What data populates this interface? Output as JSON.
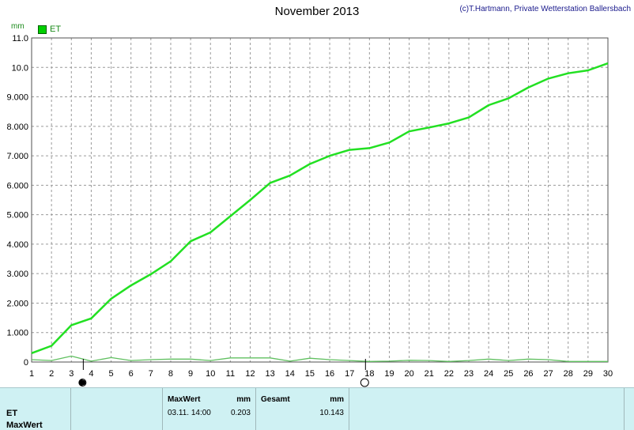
{
  "chart_data": {
    "type": "line",
    "title": "November 2013",
    "copyright": "(c)T.Hartmann, Private Wetterstation Ballersbach",
    "ylabel": "mm",
    "ylim": [
      0,
      11
    ],
    "xlim": [
      1,
      30
    ],
    "grid": true,
    "legend_position": "top-left",
    "y_ticks": [
      "0",
      "1.000",
      "2.000",
      "3.000",
      "4.000",
      "5.000",
      "6.000",
      "7.000",
      "8.000",
      "9.000",
      "10.0",
      "11.0"
    ],
    "x_ticks": [
      "1",
      "2",
      "3",
      "4",
      "5",
      "6",
      "7",
      "8",
      "9",
      "10",
      "11",
      "12",
      "13",
      "14",
      "15",
      "16",
      "17",
      "18",
      "19",
      "20",
      "21",
      "22",
      "23",
      "24",
      "25",
      "26",
      "27",
      "28",
      "29",
      "30"
    ],
    "series": [
      {
        "name": "ET",
        "color": "#22e022",
        "x": [
          1,
          2,
          3,
          4,
          5,
          6,
          7,
          8,
          9,
          10,
          11,
          12,
          13,
          14,
          15,
          16,
          17,
          18,
          19,
          20,
          21,
          22,
          23,
          24,
          25,
          26,
          27,
          28,
          29,
          30
        ],
        "values": [
          0.3,
          0.55,
          1.25,
          1.48,
          2.15,
          2.6,
          2.98,
          3.42,
          4.1,
          4.4,
          4.95,
          5.5,
          6.08,
          6.33,
          6.72,
          7.0,
          7.2,
          7.26,
          7.45,
          7.83,
          7.96,
          8.1,
          8.3,
          8.72,
          8.95,
          9.32,
          9.62,
          9.8,
          9.9,
          10.14
        ]
      },
      {
        "color": "#60c060",
        "x": [
          1,
          2,
          3,
          4,
          5,
          6,
          7,
          8,
          9,
          10,
          11,
          12,
          13,
          14,
          15,
          16,
          17,
          18,
          19,
          20,
          21,
          22,
          23,
          24,
          25,
          26,
          27,
          28,
          29,
          30
        ],
        "values": [
          0.08,
          0.05,
          0.2,
          0.03,
          0.15,
          0.05,
          0.08,
          0.1,
          0.1,
          0.05,
          0.14,
          0.14,
          0.14,
          0.03,
          0.13,
          0.08,
          0.05,
          0.02,
          0.03,
          0.06,
          0.05,
          0.02,
          0.05,
          0.1,
          0.05,
          0.1,
          0.08,
          0.02,
          0.02,
          0.02
        ]
      }
    ],
    "markers": [
      {
        "type": "new-moon",
        "x": 3.6
      },
      {
        "type": "full-moon",
        "x": 17.8
      }
    ]
  },
  "stats": {
    "row_label": "ET",
    "row_label2": "MaxWert",
    "maxwert_header": "MaxWert",
    "maxwert_unit": "mm",
    "maxwert_datetime": "03.11.  14:00",
    "maxwert_value": "0.203",
    "gesamt_header": "Gesamt",
    "gesamt_unit": "mm",
    "gesamt_value": "10.143"
  }
}
